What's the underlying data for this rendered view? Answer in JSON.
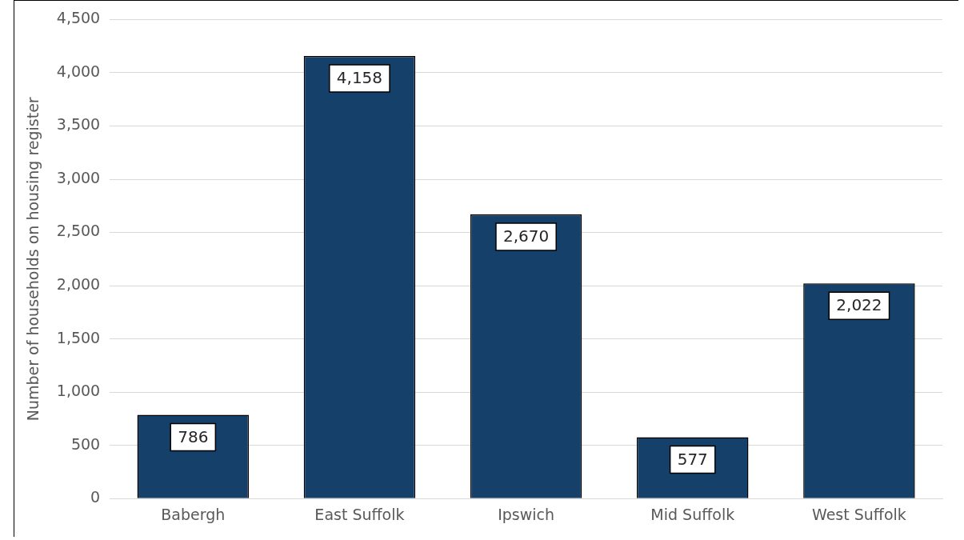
{
  "chart_data": {
    "type": "bar",
    "ylabel": "Number of households on housing register",
    "categories": [
      "Babergh",
      "East Suffolk",
      "Ipswich",
      "Mid Suffolk",
      "West Suffolk"
    ],
    "values": [
      786,
      4158,
      2670,
      577,
      2022
    ],
    "color": "#14406a",
    "value_labels": [
      "786",
      "4,158",
      "2,670",
      "577",
      "2,022"
    ],
    "ylim": [
      0,
      4500
    ],
    "yticks": [
      0,
      500,
      {
        "value": 1000,
        "label": "1,000"
      },
      {
        "value": 1500,
        "label": "1,500"
      },
      {
        "value": 2000,
        "label": "2,000"
      },
      {
        "value": 2500,
        "label": "2,500"
      },
      {
        "value": 3000,
        "label": "3,000"
      },
      {
        "value": 3500,
        "label": "3,500"
      },
      {
        "value": 4000,
        "label": "4,000"
      },
      {
        "value": 4500,
        "label": "4,500"
      }
    ],
    "grid": "y",
    "legend": false
  }
}
